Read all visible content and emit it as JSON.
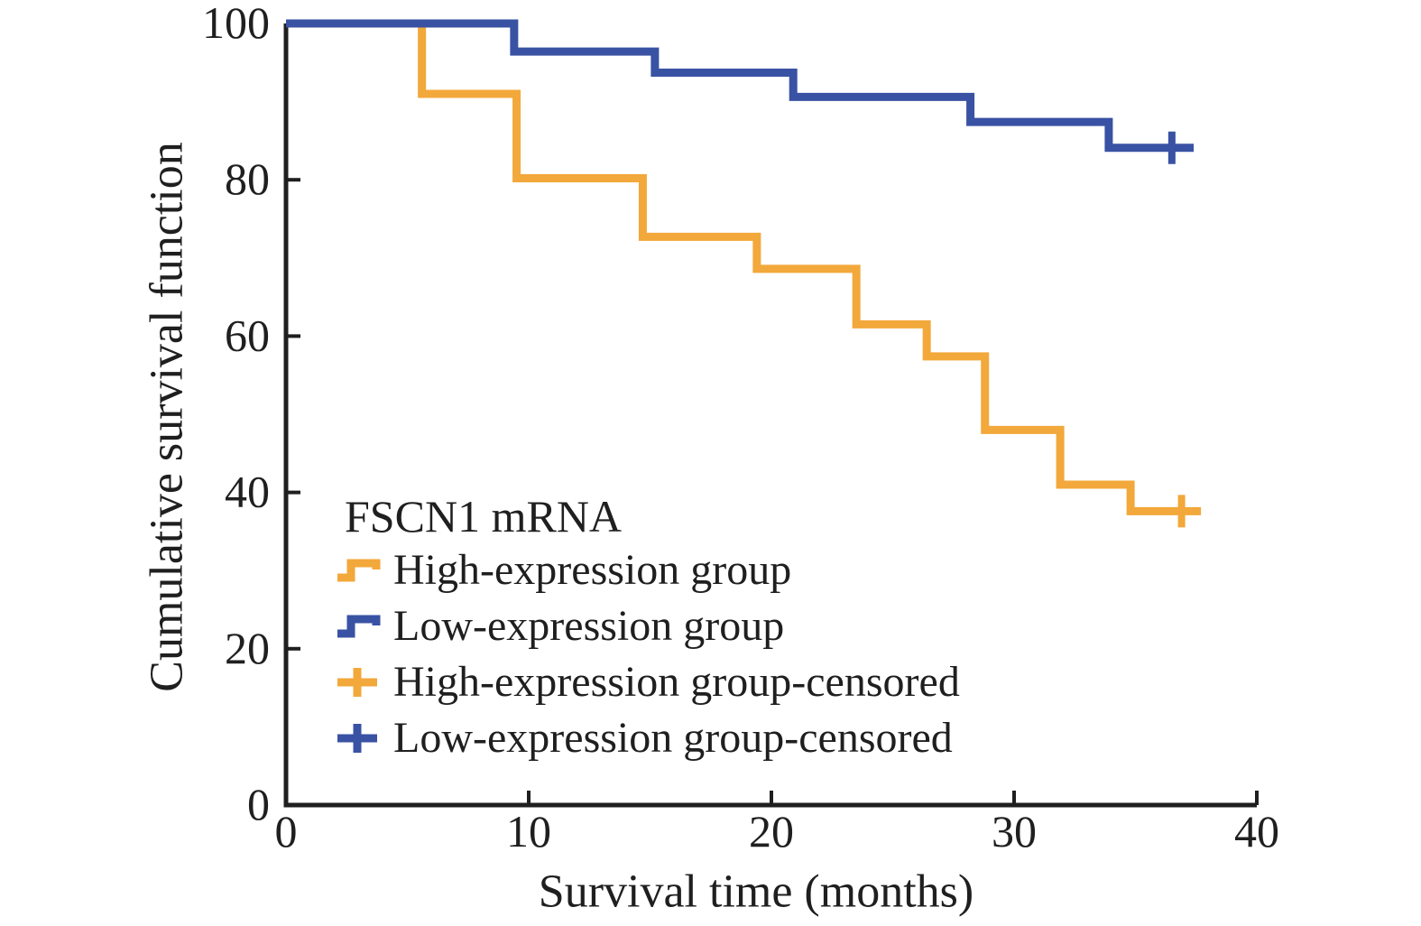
{
  "figure": {
    "x_axis_title": "Survival time (months)",
    "y_axis_title": "Cumulative survival function"
  },
  "legend": {
    "title": "FSCN1 mRNA",
    "items": [
      {
        "label": "High-expression group",
        "marker": "step-icon",
        "color": "#F2A83A"
      },
      {
        "label": "Low-expression group",
        "marker": "step-icon",
        "color": "#3952A3"
      },
      {
        "label": "High-expression group-censored",
        "marker": "plus-icon",
        "color": "#F2A83A"
      },
      {
        "label": "Low-expression group-censored",
        "marker": "plus-icon",
        "color": "#3952A3"
      }
    ]
  },
  "chart_data": {
    "type": "line",
    "subtype": "kaplan-meier-step",
    "title": "",
    "xlabel": "Survival time (months)",
    "ylabel": "Cumulative survival function",
    "xlim": [
      0,
      40
    ],
    "ylim": [
      0,
      100
    ],
    "x_ticks": [
      0,
      10,
      20,
      30,
      40
    ],
    "y_ticks": [
      0,
      20,
      40,
      60,
      80,
      100
    ],
    "grid": false,
    "legend_position": "inside-lower-left",
    "axis_color": "#1f1f1f",
    "series": [
      {
        "name": "High-expression group",
        "color": "#F2A83A",
        "start": {
          "time": 0,
          "survival": 100
        },
        "steps": [
          {
            "time": 5.6,
            "survival": 91.0
          },
          {
            "time": 9.5,
            "survival": 80.2
          },
          {
            "time": 14.7,
            "survival": 72.7
          },
          {
            "time": 19.4,
            "survival": 68.6
          },
          {
            "time": 23.5,
            "survival": 61.5
          },
          {
            "time": 26.4,
            "survival": 57.4
          },
          {
            "time": 28.8,
            "survival": 48.0
          },
          {
            "time": 31.9,
            "survival": 41.0
          },
          {
            "time": 34.8,
            "survival": 37.6
          }
        ],
        "censored": [
          {
            "time": 36.9,
            "survival": 37.6
          }
        ],
        "end_time": 37.7
      },
      {
        "name": "Low-expression group",
        "color": "#3952A3",
        "start": {
          "time": 0,
          "survival": 100
        },
        "steps": [
          {
            "time": 9.4,
            "survival": 96.4
          },
          {
            "time": 15.2,
            "survival": 93.7
          },
          {
            "time": 20.9,
            "survival": 90.6
          },
          {
            "time": 28.2,
            "survival": 87.4
          },
          {
            "time": 33.9,
            "survival": 84.1
          }
        ],
        "censored": [
          {
            "time": 36.5,
            "survival": 84.1
          }
        ],
        "end_time": 37.4
      }
    ]
  }
}
